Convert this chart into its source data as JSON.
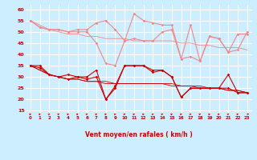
{
  "xlabel": "Vent moyen/en rafales ( km/h )",
  "background_color": "#cceeff",
  "grid_color": "#ffffff",
  "ylim": [
    13,
    62
  ],
  "yticks": [
    15,
    20,
    25,
    30,
    35,
    40,
    45,
    50,
    55,
    60
  ],
  "xlim": [
    -0.5,
    23.5
  ],
  "hours": [
    0,
    1,
    2,
    3,
    4,
    5,
    6,
    7,
    8,
    9,
    10,
    11,
    12,
    13,
    14,
    15,
    16,
    17,
    18,
    19,
    20,
    21,
    22,
    23
  ],
  "rafales_1": [
    55,
    52,
    51,
    51,
    50,
    51,
    51,
    54,
    55,
    51,
    46,
    58,
    55,
    54,
    53,
    53,
    38,
    53,
    37,
    48,
    47,
    41,
    49,
    49
  ],
  "rafales_2": [
    55,
    52,
    51,
    51,
    50,
    50,
    50,
    45,
    36,
    35,
    46,
    47,
    46,
    46,
    50,
    51,
    38,
    39,
    37,
    48,
    47,
    41,
    42,
    50
  ],
  "vent_1": [
    35,
    35,
    31,
    30,
    31,
    30,
    30,
    33,
    20,
    26,
    35,
    35,
    35,
    33,
    33,
    30,
    21,
    25,
    25,
    25,
    25,
    31,
    23,
    23
  ],
  "vent_2": [
    35,
    34,
    31,
    30,
    29,
    30,
    29,
    30,
    20,
    25,
    35,
    35,
    35,
    32,
    33,
    30,
    21,
    25,
    25,
    25,
    25,
    25,
    23,
    23
  ],
  "vent_reg_1": [
    35,
    33,
    31,
    30,
    29,
    29,
    28,
    28,
    28,
    27,
    27,
    27,
    27,
    27,
    27,
    27,
    26,
    26,
    26,
    25,
    25,
    24,
    24,
    23
  ],
  "vent_reg_2": [
    35,
    33,
    31,
    30,
    29,
    29,
    28,
    28,
    27,
    27,
    27,
    27,
    27,
    27,
    27,
    26,
    26,
    26,
    25,
    25,
    25,
    24,
    24,
    23
  ],
  "rafales_reg": [
    55,
    53,
    51,
    50,
    49,
    49,
    48,
    48,
    47,
    47,
    47,
    46,
    46,
    46,
    46,
    46,
    45,
    45,
    44,
    44,
    43,
    43,
    43,
    42
  ],
  "color_light": "#f08888",
  "color_dark": "#cc0000",
  "markersize": 1.8,
  "linewidth": 0.8,
  "reg_linewidth": 0.6,
  "arrow_angles": [
    45,
    45,
    45,
    45,
    45,
    45,
    45,
    45,
    45,
    45,
    45,
    45,
    45,
    45,
    45,
    45,
    45,
    45,
    45,
    45,
    45,
    45,
    45,
    0
  ]
}
